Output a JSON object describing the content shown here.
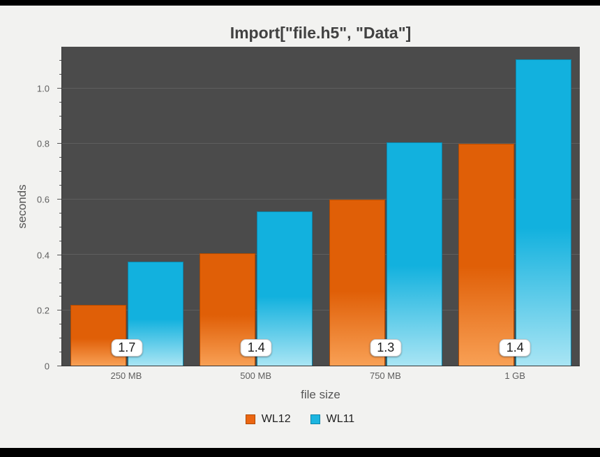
{
  "chart_data": {
    "type": "bar",
    "title": "Import[\"file.h5\", \"Data\"]",
    "xlabel": "file size",
    "ylabel": "seconds",
    "categories": [
      "250 MB",
      "500 MB",
      "750 MB",
      "1 GB"
    ],
    "series": [
      {
        "name": "WL12",
        "color": "#eb6612",
        "fill_top": "#e05f07",
        "fill_bottom": "#f8a055",
        "edge": "#b04a00",
        "values": [
          0.22,
          0.405,
          0.6,
          0.8
        ]
      },
      {
        "name": "WL11",
        "color": "#1cb5e0",
        "fill_top": "#12b1de",
        "fill_bottom": "#a9e5f4",
        "edge": "#0c84a8",
        "values": [
          0.375,
          0.555,
          0.805,
          1.105
        ]
      }
    ],
    "ratio_labels": [
      "1.7",
      "1.4",
      "1.3",
      "1.4"
    ],
    "yticks": [
      0,
      0.2,
      0.4,
      0.6,
      0.8,
      1.0
    ],
    "ytick_labels": [
      "0",
      "0.2",
      "0.4",
      "0.6",
      "0.8",
      "1.0"
    ],
    "ylim": [
      0,
      1.15
    ],
    "legend_position": "bottom",
    "grid": "horizontal-major",
    "plot_background": "#4b4b4b",
    "page_background": "#f2f2f0"
  }
}
